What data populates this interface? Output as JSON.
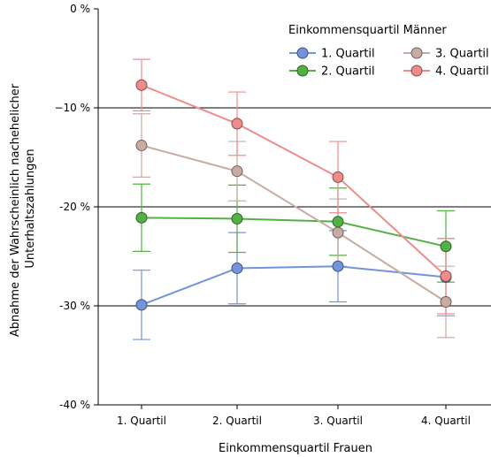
{
  "chart_data": {
    "type": "line",
    "xlabel": "Einkommensquartil Frauen",
    "ylabel": "Abnahme der Wahrscheinlich nachehelicher Unterhaltszahlungen",
    "ylabel_lines": [
      "Abnahme der Wahrscheinlich nachehelicher",
      "Unterhaltszahlungen"
    ],
    "categories": [
      "1. Quartil",
      "2. Quartil",
      "3. Quartil",
      "4. Quartil"
    ],
    "ylim": [
      -40,
      0
    ],
    "yticks": [
      0,
      -10,
      -20,
      -30,
      -40
    ],
    "ytick_labels": [
      "0 %",
      "−10 %",
      "-20 %",
      "-30 %",
      "-40 %"
    ],
    "grid": "horizontal",
    "legend": {
      "title": "Einkommensquartil Männer",
      "placement": "top-right"
    },
    "series": [
      {
        "name": "1. Quartil",
        "color": "#7393da",
        "values": [
          -29.9,
          -26.2,
          -26.0,
          -27.1
        ],
        "ci_low": [
          -33.4,
          -29.8,
          -29.6,
          -31.0
        ],
        "ci_high": [
          -26.4,
          -22.6,
          -22.4,
          -23.2
        ]
      },
      {
        "name": "2. Quartil",
        "color": "#54b045",
        "values": [
          -21.1,
          -21.2,
          -21.5,
          -24.0
        ],
        "ci_low": [
          -24.5,
          -24.6,
          -24.9,
          -27.6
        ],
        "ci_high": [
          -17.7,
          -17.8,
          -18.1,
          -20.4
        ]
      },
      {
        "name": "3. Quartil",
        "color": "#c8aca2",
        "values": [
          -13.8,
          -16.4,
          -22.6,
          -29.6
        ],
        "ci_low": [
          -17.0,
          -19.4,
          -26.0,
          -33.2
        ],
        "ci_high": [
          -10.6,
          -13.4,
          -19.2,
          -26.0
        ]
      },
      {
        "name": "4. Quartil",
        "color": "#ef8b8b",
        "values": [
          -7.7,
          -11.6,
          -17.0,
          -27.0
        ],
        "ci_low": [
          -10.3,
          -14.8,
          -20.6,
          -30.8
        ],
        "ci_high": [
          -5.1,
          -8.4,
          -13.4,
          -23.2
        ]
      }
    ]
  }
}
